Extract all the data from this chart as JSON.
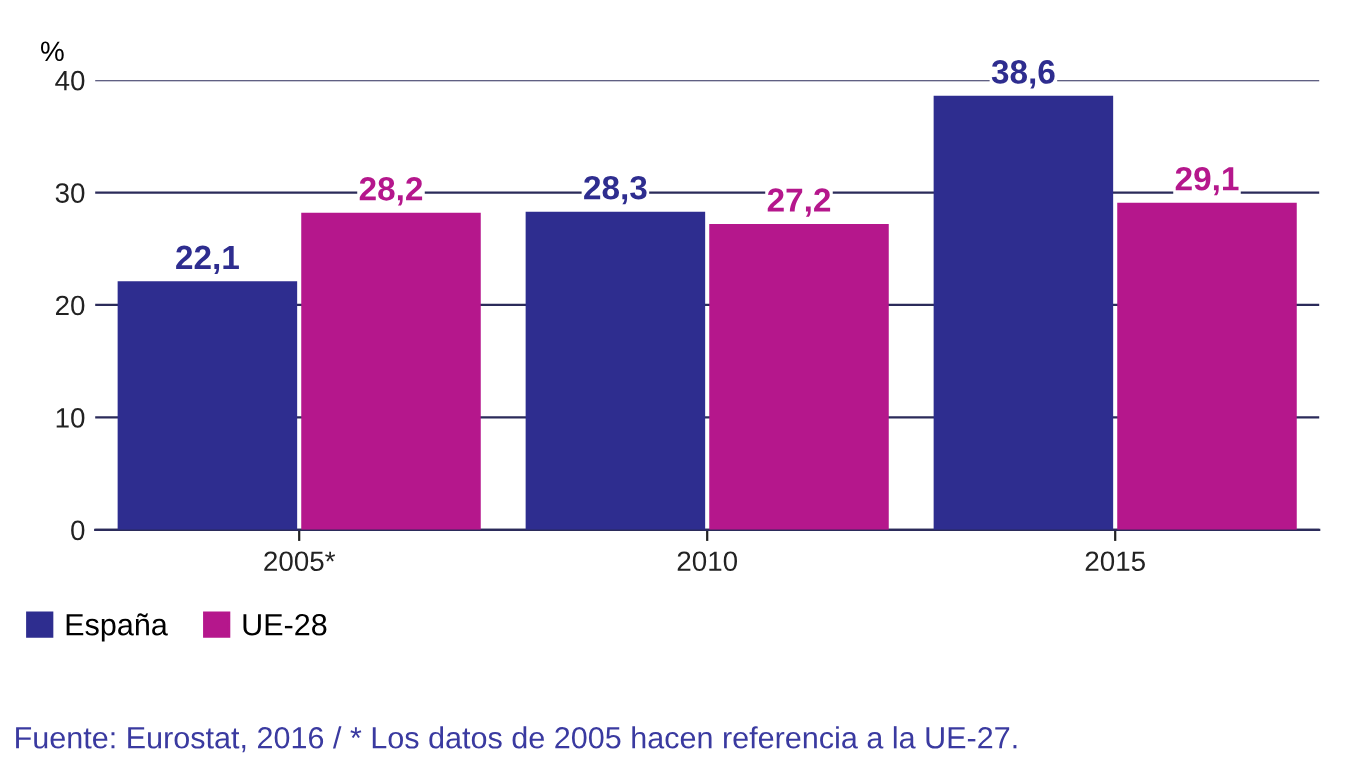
{
  "chart_data": {
    "type": "bar",
    "ylabel": "%",
    "categories": [
      "2005*",
      "2010",
      "2015"
    ],
    "series": [
      {
        "name": "España",
        "color": "#2e2d8f",
        "values": [
          22.1,
          28.3,
          38.6
        ],
        "value_labels": [
          "22,1",
          "28,3",
          "38,6"
        ]
      },
      {
        "name": "UE-28",
        "color": "#b5178c",
        "values": [
          28.2,
          27.2,
          29.1
        ],
        "value_labels": [
          "28,2",
          "27,2",
          "29,1"
        ]
      }
    ],
    "ylim": [
      0,
      40
    ],
    "yticks": [
      0,
      10,
      20,
      30,
      40
    ],
    "grid": "y",
    "legend": "bottom left",
    "annotations": [
      "Fuente: Eurostat, 2016 / * Los datos de 2005 hacen referencia a la UE-27."
    ]
  }
}
